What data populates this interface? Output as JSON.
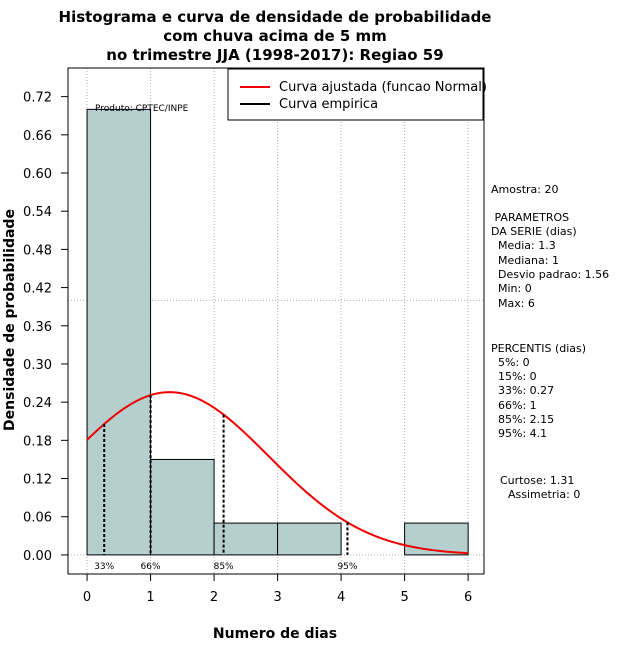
{
  "chart_data": {
    "type": "histogram",
    "title": [
      "Histograma e curva de densidade de probabilidade",
      "com chuva acima de 5 mm",
      "no trimestre JJA (1998-2017): Regiao 59"
    ],
    "xlabel": "Numero de dias",
    "ylabel": "Densidade de probabilidade",
    "xlim": [
      -0.3,
      6.25
    ],
    "ylim": [
      -0.03,
      0.765
    ],
    "x_ticks": [
      "0",
      "1",
      "2",
      "3",
      "4",
      "5",
      "6"
    ],
    "x_tick_values": [
      0,
      1,
      2,
      3,
      4,
      5,
      6
    ],
    "y_ticks": [
      "0.00",
      "0.06",
      "0.12",
      "0.18",
      "0.24",
      "0.30",
      "0.36",
      "0.42",
      "0.48",
      "0.54",
      "0.60",
      "0.66",
      "0.72"
    ],
    "y_tick_values": [
      0,
      0.06,
      0.12,
      0.18,
      0.24,
      0.3,
      0.36,
      0.42,
      0.48,
      0.54,
      0.6,
      0.66,
      0.72
    ],
    "bins": [
      {
        "x0": 0,
        "x1": 1,
        "density": 0.7
      },
      {
        "x0": 1,
        "x1": 2,
        "density": 0.15
      },
      {
        "x0": 2,
        "x1": 3,
        "density": 0.05
      },
      {
        "x0": 3,
        "x1": 4,
        "density": 0.05
      },
      {
        "x0": 4,
        "x1": 5,
        "density": 0.0
      },
      {
        "x0": 5,
        "x1": 6,
        "density": 0.05
      }
    ],
    "normal_curve": {
      "mean": 1.3,
      "sd": 1.56,
      "x_min": 0,
      "x_max": 6
    },
    "reference_hline": 0.4,
    "percentile_markers": [
      {
        "label": "33%",
        "x": 0.27
      },
      {
        "label": "66%",
        "x": 1
      },
      {
        "label": "85%",
        "x": 2.15
      },
      {
        "label": "95%",
        "x": 4.1
      }
    ],
    "legend": [
      {
        "label": "Curva ajustada (funcao Normal)",
        "color": "#ee0000"
      },
      {
        "label": "Curva empirica",
        "color": "#000000"
      }
    ],
    "legend_position": "top-right",
    "produto": "Produto: CPTEC/INPE",
    "bar_color": "#b5cfcf",
    "curve_color": "#ee0000"
  },
  "side_panel": {
    "amostra": "Amostra: 20",
    "parametros_title_1": " PARAMETROS",
    "parametros_title_2": "DA SERIE (dias)",
    "media": "  Media: 1.3",
    "mediana": "  Mediana: 1",
    "desvio": "  Desvio padrao: 1.56",
    "min": "  Min: 0",
    "max": "  Max: 6",
    "percentis_title": "PERCENTIS (dias)",
    "p5": "  5%: 0",
    "p15": "  15%: 0",
    "p33": "  33%: 0.27",
    "p66": "  66%: 1",
    "p85": "  85%: 2.15",
    "p95": "  95%: 4.1",
    "curtose": "Curtose: 1.31",
    "assimetria": "Assimetria: 0"
  }
}
